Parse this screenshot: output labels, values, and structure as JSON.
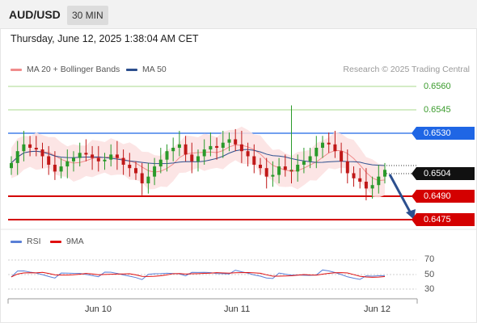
{
  "header": {
    "symbol": "AUD/USD",
    "timeframe": "30 MIN"
  },
  "datetime": "Thursday, June 12, 2025 1:38:04 AM CET",
  "legend": {
    "ma20": {
      "label": "MA 20 + Bollinger Bands",
      "color": "#f08c8c"
    },
    "ma50": {
      "label": "MA 50",
      "color": "#2c4f8e"
    }
  },
  "copyright": "Research © 2025 Trading Central",
  "levels": {
    "resistance3": "0.6560",
    "resistance2": "0.6545",
    "pivot": "0.6530",
    "last": "0.6504",
    "support1": "0.6490",
    "support2": "0.6475"
  },
  "rsi_legend": {
    "rsi": {
      "label": "RSI",
      "color": "#5a7fd6"
    },
    "ma9": {
      "label": "9MA",
      "color": "#e01010"
    }
  },
  "rsi_levels": [
    "70",
    "50",
    "30"
  ],
  "x_axis": [
    "Jun 10",
    "Jun 11",
    "Jun 12"
  ],
  "colors": {
    "up": "#2a9a2a",
    "down": "#c01818",
    "pivot": "#1f66e5",
    "support": "#d40000",
    "resistance": "#98d07c"
  },
  "chart_data": {
    "type": "candlestick",
    "instrument": "AUD/USD",
    "timeframe": "30 MIN",
    "y_range": [
      0.647,
      0.657
    ],
    "horizontal_levels": [
      0.656,
      0.6545,
      0.653,
      0.649,
      0.6475
    ],
    "last_price": 0.6504,
    "x_ticks": [
      "Jun 10",
      "Jun 11",
      "Jun 12"
    ],
    "rsi_range": [
      20,
      80
    ],
    "rsi_levels": [
      70,
      50,
      30
    ]
  }
}
